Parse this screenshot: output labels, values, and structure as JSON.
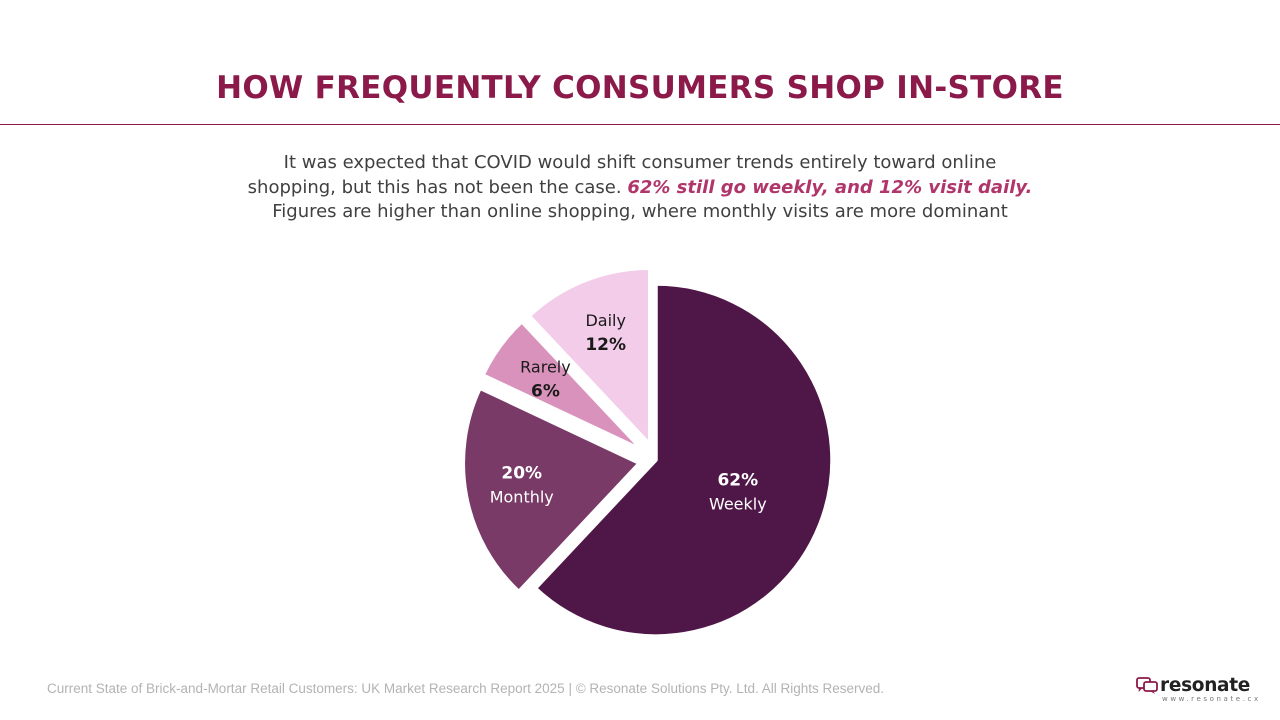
{
  "slide": {
    "title": "HOW FREQUENTLY CONSUMERS SHOP IN-STORE",
    "subtitle_part1": "It was expected that COVID would shift consumer trends entirely toward online shopping, but this has not been the case.",
    "subtitle_highlight": "62% still go weekly, and 12% visit daily.",
    "subtitle_part2": "Figures are higher than online shopping, where monthly visits are more dominant"
  },
  "colors": {
    "title": "#8b1a4a",
    "highlight": "#b0356a",
    "weekly": "#4f1747",
    "monthly": "#7a3a68",
    "rarely": "#d992bc",
    "daily": "#f2cce8"
  },
  "chart_data": {
    "type": "pie",
    "title": "",
    "slices": [
      {
        "label": "Weekly",
        "value": 62,
        "value_label": "62%",
        "color": "#4f1747",
        "label_color": "#ffffff",
        "exploded": false
      },
      {
        "label": "Monthly",
        "value": 20,
        "value_label": "20%",
        "color": "#7a3a68",
        "label_color": "#ffffff",
        "exploded": true
      },
      {
        "label": "Rarely",
        "value": 6,
        "value_label": "6%",
        "color": "#d992bc",
        "label_color": "#1a1a1a",
        "exploded": true
      },
      {
        "label": "Daily",
        "value": 12,
        "value_label": "12%",
        "color": "#f2cce8",
        "label_color": "#1a1a1a",
        "exploded": true
      }
    ]
  },
  "footer": {
    "text": "Current State of Brick-and-Mortar Retail Customers: UK Market Research Report 2025 | © Resonate Solutions Pty. Ltd. All Rights Reserved.",
    "brand_name": "resonate",
    "brand_url": "www.resonate.cx",
    "brand_icon": "speech-bubbles-icon"
  }
}
